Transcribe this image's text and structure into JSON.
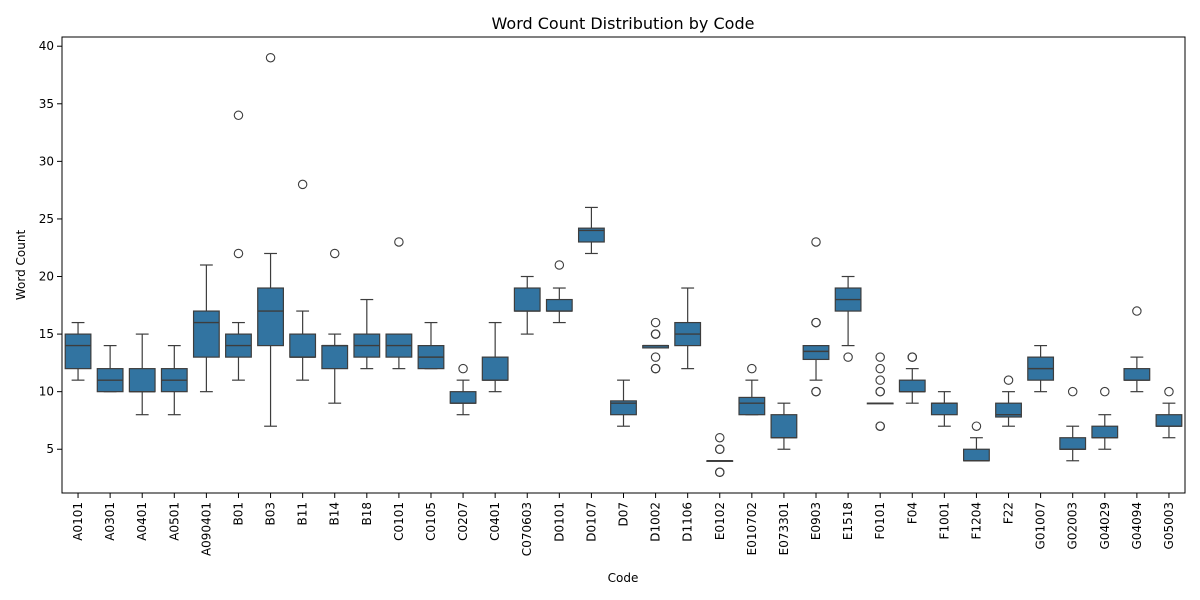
{
  "chart_data": {
    "type": "boxplot",
    "title": "Word Count Distribution by Code",
    "xlabel": "Code",
    "ylabel": "Word Count",
    "ylim": [
      1.2,
      40.8
    ],
    "yticks": [
      5,
      10,
      15,
      20,
      25,
      30,
      35,
      40
    ],
    "grid": false,
    "box_color": "#3274a1",
    "line_color": "#3d3d3d",
    "categories": [
      "A0101",
      "A0301",
      "A0401",
      "A0501",
      "A090401",
      "B01",
      "B03",
      "B11",
      "B14",
      "B18",
      "C0101",
      "C0105",
      "C0207",
      "C0401",
      "C070603",
      "D0101",
      "D0107",
      "D07",
      "D1002",
      "D1106",
      "E0102",
      "E010702",
      "E073301",
      "E0903",
      "E1518",
      "F0101",
      "F04",
      "F1001",
      "F1204",
      "F22",
      "G01007",
      "G02003",
      "G04029",
      "G04094",
      "G05003"
    ],
    "boxes": [
      {
        "code": "A0101",
        "whisker_low": 11,
        "q1": 12,
        "median": 14,
        "q3": 15,
        "whisker_high": 16,
        "outliers": []
      },
      {
        "code": "A0301",
        "whisker_low": 10,
        "q1": 10,
        "median": 11,
        "q3": 12,
        "whisker_high": 14,
        "outliers": []
      },
      {
        "code": "A0401",
        "whisker_low": 8,
        "q1": 10,
        "median": 10,
        "q3": 12,
        "whisker_high": 15,
        "outliers": []
      },
      {
        "code": "A0501",
        "whisker_low": 8,
        "q1": 10,
        "median": 11,
        "q3": 12,
        "whisker_high": 14,
        "outliers": []
      },
      {
        "code": "A090401",
        "whisker_low": 10,
        "q1": 13,
        "median": 16,
        "q3": 17,
        "whisker_high": 21,
        "outliers": []
      },
      {
        "code": "B01",
        "whisker_low": 11,
        "q1": 13,
        "median": 14,
        "q3": 15,
        "whisker_high": 16,
        "outliers": [
          22,
          34
        ]
      },
      {
        "code": "B03",
        "whisker_low": 7,
        "q1": 14,
        "median": 17,
        "q3": 19,
        "whisker_high": 22,
        "outliers": [
          39
        ]
      },
      {
        "code": "B11",
        "whisker_low": 11,
        "q1": 13,
        "median": 13,
        "q3": 15,
        "whisker_high": 17,
        "outliers": [
          28
        ]
      },
      {
        "code": "B14",
        "whisker_low": 9,
        "q1": 12,
        "median": 14,
        "q3": 14,
        "whisker_high": 15,
        "outliers": [
          22
        ]
      },
      {
        "code": "B18",
        "whisker_low": 12,
        "q1": 13,
        "median": 14,
        "q3": 15,
        "whisker_high": 18,
        "outliers": []
      },
      {
        "code": "C0101",
        "whisker_low": 12,
        "q1": 13,
        "median": 14,
        "q3": 15,
        "whisker_high": 15,
        "outliers": [
          23
        ]
      },
      {
        "code": "C0105",
        "whisker_low": 12,
        "q1": 12,
        "median": 13,
        "q3": 14,
        "whisker_high": 16,
        "outliers": []
      },
      {
        "code": "C0207",
        "whisker_low": 8,
        "q1": 9,
        "median": 9,
        "q3": 10,
        "whisker_high": 11,
        "outliers": [
          12
        ]
      },
      {
        "code": "C0401",
        "whisker_low": 10,
        "q1": 11,
        "median": 11,
        "q3": 13,
        "whisker_high": 16,
        "outliers": []
      },
      {
        "code": "C070603",
        "whisker_low": 15,
        "q1": 17,
        "median": 17,
        "q3": 19,
        "whisker_high": 20,
        "outliers": []
      },
      {
        "code": "D0101",
        "whisker_low": 16,
        "q1": 17,
        "median": 17,
        "q3": 18,
        "whisker_high": 19,
        "outliers": [
          21
        ]
      },
      {
        "code": "D0107",
        "whisker_low": 22,
        "q1": 23,
        "median": 24,
        "q3": 24.2,
        "whisker_high": 26,
        "outliers": []
      },
      {
        "code": "D07",
        "whisker_low": 7,
        "q1": 8,
        "median": 9,
        "q3": 9.2,
        "whisker_high": 11,
        "outliers": []
      },
      {
        "code": "D1002",
        "whisker_low": 13.8,
        "q1": 13.8,
        "median": 14,
        "q3": 14,
        "whisker_high": 14,
        "outliers": [
          12,
          12,
          13,
          15,
          15,
          16
        ]
      },
      {
        "code": "D1106",
        "whisker_low": 12,
        "q1": 14,
        "median": 15,
        "q3": 16,
        "whisker_high": 19,
        "outliers": []
      },
      {
        "code": "E0102",
        "whisker_low": 4,
        "q1": 4,
        "median": 4,
        "q3": 4,
        "whisker_high": 4,
        "outliers": [
          3,
          3,
          5,
          5,
          6
        ]
      },
      {
        "code": "E010702",
        "whisker_low": 8,
        "q1": 8,
        "median": 9,
        "q3": 9.5,
        "whisker_high": 11,
        "outliers": [
          12
        ]
      },
      {
        "code": "E073301",
        "whisker_low": 5,
        "q1": 6,
        "median": 6,
        "q3": 8,
        "whisker_high": 9,
        "outliers": []
      },
      {
        "code": "E0903",
        "whisker_low": 11,
        "q1": 12.8,
        "median": 13.5,
        "q3": 14,
        "whisker_high": 14,
        "outliers": [
          10,
          10,
          16,
          16,
          23
        ]
      },
      {
        "code": "E1518",
        "whisker_low": 14,
        "q1": 17,
        "median": 18,
        "q3": 19,
        "whisker_high": 20,
        "outliers": [
          13
        ]
      },
      {
        "code": "F0101",
        "whisker_low": 9,
        "q1": 9,
        "median": 9,
        "q3": 9,
        "whisker_high": 9,
        "outliers": [
          7,
          7,
          10,
          10,
          11,
          12,
          13
        ]
      },
      {
        "code": "F04",
        "whisker_low": 9,
        "q1": 10,
        "median": 10,
        "q3": 11,
        "whisker_high": 12,
        "outliers": [
          13,
          13
        ]
      },
      {
        "code": "F1001",
        "whisker_low": 7,
        "q1": 8,
        "median": 9,
        "q3": 9,
        "whisker_high": 10,
        "outliers": []
      },
      {
        "code": "F1204",
        "whisker_low": 4,
        "q1": 4,
        "median": 4,
        "q3": 5,
        "whisker_high": 6,
        "outliers": [
          7
        ]
      },
      {
        "code": "F22",
        "whisker_low": 7,
        "q1": 7.8,
        "median": 8,
        "q3": 9,
        "whisker_high": 10,
        "outliers": [
          11
        ]
      },
      {
        "code": "G01007",
        "whisker_low": 10,
        "q1": 11,
        "median": 12,
        "q3": 13,
        "whisker_high": 14,
        "outliers": []
      },
      {
        "code": "G02003",
        "whisker_low": 4,
        "q1": 5,
        "median": 5,
        "q3": 6,
        "whisker_high": 7,
        "outliers": [
          10
        ]
      },
      {
        "code": "G04029",
        "whisker_low": 5,
        "q1": 6,
        "median": 6,
        "q3": 7,
        "whisker_high": 8,
        "outliers": [
          10
        ]
      },
      {
        "code": "G04094",
        "whisker_low": 10,
        "q1": 11,
        "median": 11,
        "q3": 12,
        "whisker_high": 13,
        "outliers": [
          17
        ]
      },
      {
        "code": "G05003",
        "whisker_low": 6,
        "q1": 7,
        "median": 7,
        "q3": 8,
        "whisker_high": 9,
        "outliers": [
          10
        ]
      }
    ]
  }
}
